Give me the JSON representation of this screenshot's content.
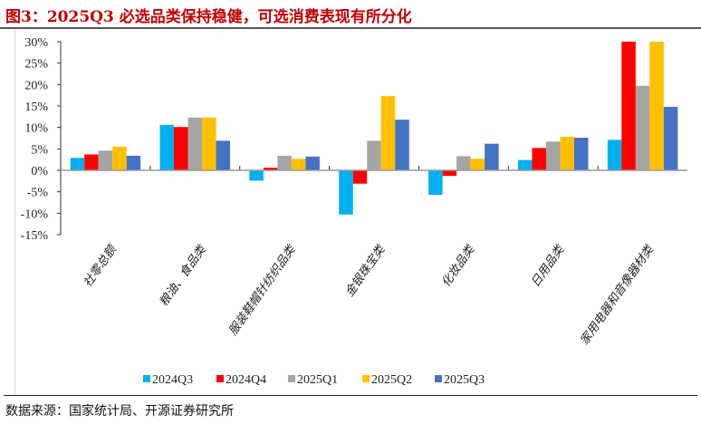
{
  "title": "图3：2025Q3 必选品类保持稳健，可选消费表现有所分化",
  "source": "数据来源：国家统计局、开源证券研究所",
  "chart_data": {
    "type": "bar",
    "categories": [
      "社零总额",
      "粮油、食品类",
      "服装鞋帽针纺织品类",
      "金银珠宝类",
      "化妆品类",
      "日用品类",
      "家用电器和音像器材类"
    ],
    "series": [
      {
        "name": "2024Q3",
        "color": "#00b0f0",
        "values": [
          2.9,
          10.6,
          -2.4,
          -10.3,
          -5.7,
          2.4,
          7.1
        ]
      },
      {
        "name": "2024Q4",
        "color": "#ff0000",
        "values": [
          3.7,
          10.1,
          0.6,
          -3.1,
          -1.3,
          5.2,
          30
        ]
      },
      {
        "name": "2025Q1",
        "color": "#a5a5a5",
        "values": [
          4.6,
          12.3,
          3.4,
          6.9,
          3.3,
          6.7,
          19.7
        ]
      },
      {
        "name": "2025Q2",
        "color": "#ffc000",
        "values": [
          5.5,
          12.3,
          2.7,
          17.3,
          2.7,
          7.8,
          30
        ]
      },
      {
        "name": "2025Q3",
        "color": "#4472c4",
        "values": [
          3.4,
          6.9,
          3.2,
          11.8,
          6.2,
          7.6,
          14.8
        ]
      }
    ],
    "yticks": [
      "30%",
      "25%",
      "20%",
      "15%",
      "10%",
      "5%",
      "0%",
      "-5%",
      "-10%",
      "-15%"
    ],
    "ylim": [
      -15,
      30
    ],
    "unit": "%",
    "grid": false,
    "legend": "bottom"
  }
}
